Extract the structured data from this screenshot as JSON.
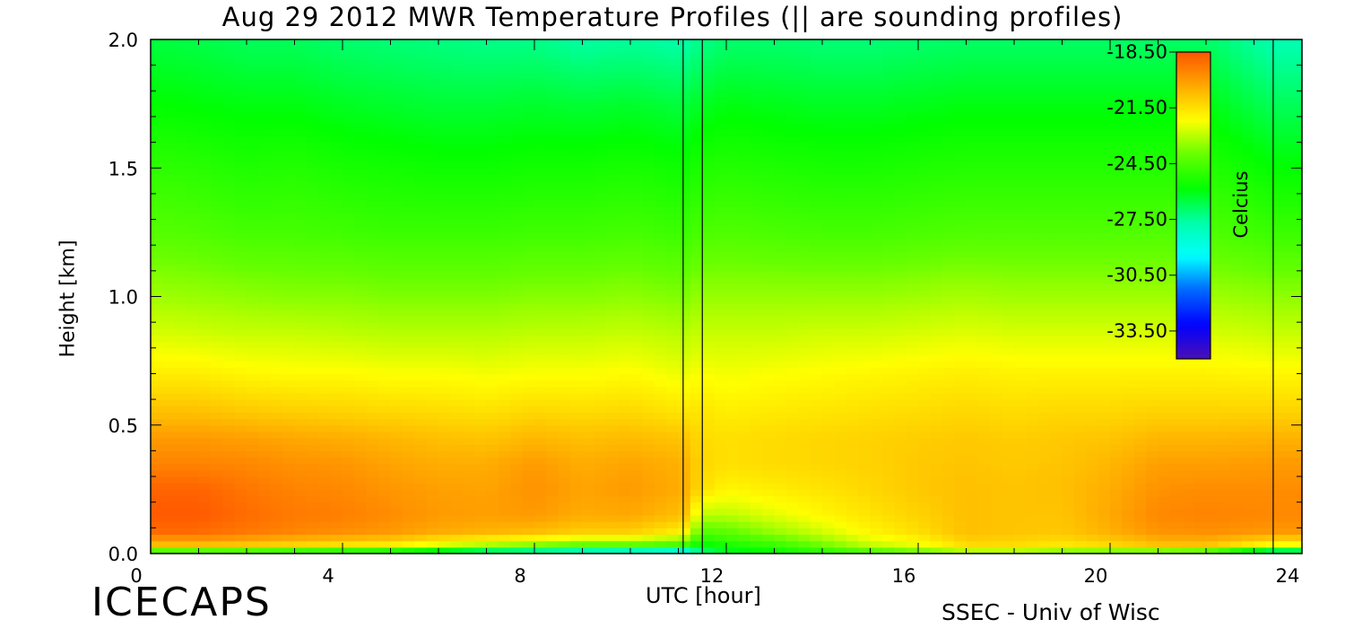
{
  "page": {
    "title": "Aug 29 2012 MWR Temperature Profiles (|| are sounding profiles)",
    "logo": "ICECAPS",
    "credit": "SSEC - Univ of Wisc"
  },
  "chart_data": {
    "type": "heatmap",
    "title": "Aug 29 2012 MWR Temperature Profiles (|| are sounding profiles)",
    "xlabel": "UTC [hour]",
    "ylabel": "Height [km]",
    "xlim": [
      0,
      24
    ],
    "ylim": [
      0,
      2.0
    ],
    "x_ticks": [
      0,
      4,
      8,
      12,
      16,
      20,
      24
    ],
    "y_ticks": [
      "0.0",
      "0.5",
      "1.0",
      "1.5",
      "2.0"
    ],
    "grid": false,
    "colorbar": {
      "label": "Celcius",
      "range": [
        -35.0,
        -18.5
      ],
      "ticks": [
        "-18.50",
        "-21.50",
        "-24.50",
        "-27.50",
        "-30.50",
        "-33.50"
      ],
      "colormap": [
        "#ff5500",
        "#ffaa00",
        "#ffff00",
        "#66ff00",
        "#00ff00",
        "#00ffaa",
        "#00ffff",
        "#0066ff",
        "#0000ff",
        "#4b0fb4"
      ]
    },
    "sounding_lines_utc": [
      11.1,
      11.5,
      23.4
    ],
    "profile_heights_km": [
      0.0,
      0.03,
      0.08,
      0.15,
      0.25,
      0.35,
      0.45,
      0.55,
      0.7,
      0.85,
      1.0,
      1.25,
      1.5,
      1.75,
      2.0
    ],
    "profile_times_utc": [
      0,
      1,
      2,
      3,
      4,
      5,
      6,
      7,
      8,
      9,
      10,
      11.1,
      11.5,
      12,
      13,
      14,
      15,
      16,
      17,
      18,
      19,
      20,
      21,
      22,
      23.4,
      24
    ],
    "temperature_c": [
      [
        -26.5,
        -21.0,
        -19.0,
        -18.6,
        -18.8,
        -19.5,
        -20.0,
        -20.8,
        -21.8,
        -22.6,
        -23.3,
        -24.3,
        -25.0,
        -25.8,
        -26.5
      ],
      [
        -26.5,
        -21.0,
        -19.0,
        -18.6,
        -18.8,
        -19.5,
        -20.0,
        -20.8,
        -21.8,
        -22.7,
        -23.4,
        -24.4,
        -25.1,
        -25.9,
        -26.6
      ],
      [
        -26.5,
        -21.2,
        -19.3,
        -19.0,
        -19.2,
        -19.6,
        -20.1,
        -21.0,
        -22.0,
        -22.8,
        -23.5,
        -24.6,
        -25.3,
        -26.0,
        -26.8
      ],
      [
        -26.8,
        -21.5,
        -19.6,
        -19.3,
        -19.5,
        -19.8,
        -20.3,
        -21.1,
        -22.1,
        -22.8,
        -23.6,
        -24.6,
        -25.2,
        -26.0,
        -26.8
      ],
      [
        -27.0,
        -21.8,
        -19.8,
        -19.4,
        -19.6,
        -19.9,
        -20.4,
        -21.2,
        -22.1,
        -22.9,
        -23.6,
        -24.7,
        -25.4,
        -26.2,
        -27.0
      ],
      [
        -27.3,
        -22.0,
        -20.0,
        -19.7,
        -19.9,
        -20.2,
        -20.6,
        -21.3,
        -22.2,
        -23.0,
        -23.7,
        -24.8,
        -25.5,
        -26.3,
        -27.1
      ],
      [
        -28.0,
        -22.8,
        -20.4,
        -20.0,
        -20.1,
        -20.4,
        -20.8,
        -21.4,
        -22.2,
        -23.0,
        -23.7,
        -24.8,
        -25.6,
        -26.4,
        -27.2
      ],
      [
        -29.0,
        -23.5,
        -20.6,
        -20.1,
        -20.2,
        -20.4,
        -20.9,
        -21.5,
        -22.3,
        -23.0,
        -23.7,
        -24.8,
        -25.6,
        -26.4,
        -27.3
      ],
      [
        -29.5,
        -24.0,
        -20.8,
        -20.0,
        -19.8,
        -20.0,
        -20.6,
        -21.3,
        -22.2,
        -22.9,
        -23.6,
        -24.7,
        -25.5,
        -26.3,
        -27.3
      ],
      [
        -30.0,
        -24.5,
        -21.2,
        -20.4,
        -20.2,
        -20.4,
        -20.8,
        -21.4,
        -22.2,
        -22.9,
        -23.6,
        -24.7,
        -25.5,
        -26.4,
        -27.6
      ],
      [
        -30.5,
        -24.5,
        -21.2,
        -20.3,
        -20.0,
        -20.2,
        -20.7,
        -21.3,
        -22.1,
        -22.8,
        -23.5,
        -24.6,
        -25.4,
        -26.3,
        -27.5
      ],
      [
        -31.0,
        -25.0,
        -22.0,
        -20.8,
        -20.4,
        -20.5,
        -20.9,
        -21.6,
        -22.4,
        -23.0,
        -23.7,
        -24.8,
        -25.6,
        -26.5,
        -27.7
      ],
      [
        -27.5,
        -26.0,
        -24.5,
        -23.0,
        -21.5,
        -21.3,
        -21.4,
        -21.6,
        -22.2,
        -22.8,
        -23.4,
        -24.5,
        -25.3,
        -26.2,
        -27.3
      ],
      [
        -26.5,
        -25.5,
        -24.3,
        -23.0,
        -22.0,
        -21.5,
        -21.5,
        -21.8,
        -22.3,
        -22.8,
        -23.4,
        -24.4,
        -25.2,
        -26.0,
        -27.0
      ],
      [
        -26.0,
        -25.0,
        -23.5,
        -22.5,
        -21.8,
        -21.4,
        -21.4,
        -21.7,
        -22.2,
        -22.8,
        -23.4,
        -24.5,
        -25.3,
        -26.1,
        -27.0
      ],
      [
        -25.5,
        -24.0,
        -22.8,
        -22.0,
        -21.6,
        -21.3,
        -21.3,
        -21.6,
        -22.1,
        -22.7,
        -23.4,
        -24.6,
        -25.4,
        -26.2,
        -27.1
      ],
      [
        -25.0,
        -23.0,
        -22.0,
        -21.6,
        -21.3,
        -21.2,
        -21.2,
        -21.5,
        -22.0,
        -22.7,
        -23.4,
        -24.6,
        -25.4,
        -26.2,
        -27.1
      ],
      [
        -24.5,
        -22.5,
        -21.5,
        -21.2,
        -21.0,
        -21.0,
        -21.1,
        -21.4,
        -21.9,
        -22.6,
        -23.3,
        -24.5,
        -25.3,
        -26.1,
        -27.0
      ],
      [
        -24.0,
        -21.5,
        -20.8,
        -20.8,
        -20.8,
        -20.9,
        -21.0,
        -21.3,
        -21.8,
        -22.5,
        -23.2,
        -24.4,
        -25.2,
        -26.0,
        -26.9
      ],
      [
        -24.0,
        -21.5,
        -20.9,
        -20.9,
        -20.9,
        -21.0,
        -21.1,
        -21.4,
        -21.9,
        -22.6,
        -23.3,
        -24.4,
        -25.2,
        -26.0,
        -26.9
      ],
      [
        -24.5,
        -21.8,
        -21.0,
        -20.9,
        -20.8,
        -20.9,
        -21.0,
        -21.3,
        -21.9,
        -22.6,
        -23.3,
        -24.4,
        -25.2,
        -26.0,
        -26.9
      ],
      [
        -25.0,
        -21.5,
        -20.5,
        -20.3,
        -20.4,
        -20.6,
        -20.9,
        -21.3,
        -21.9,
        -22.6,
        -23.3,
        -24.4,
        -25.2,
        -26.0,
        -26.9
      ],
      [
        -25.5,
        -21.0,
        -19.9,
        -19.6,
        -19.8,
        -20.1,
        -20.6,
        -21.2,
        -21.9,
        -22.6,
        -23.3,
        -24.4,
        -25.2,
        -26.0,
        -26.9
      ],
      [
        -26.0,
        -21.0,
        -19.8,
        -19.5,
        -19.7,
        -20.1,
        -20.6,
        -21.2,
        -21.9,
        -22.6,
        -23.3,
        -24.4,
        -25.2,
        -26.0,
        -26.9
      ],
      [
        -29.5,
        -22.5,
        -20.0,
        -19.6,
        -19.7,
        -20.0,
        -20.5,
        -21.2,
        -22.0,
        -22.8,
        -23.5,
        -24.8,
        -25.8,
        -26.8,
        -27.8
      ],
      [
        -29.5,
        -22.5,
        -20.0,
        -19.6,
        -19.7,
        -20.0,
        -20.5,
        -21.2,
        -22.0,
        -22.8,
        -23.5,
        -24.8,
        -25.8,
        -26.8,
        -27.8
      ]
    ]
  }
}
